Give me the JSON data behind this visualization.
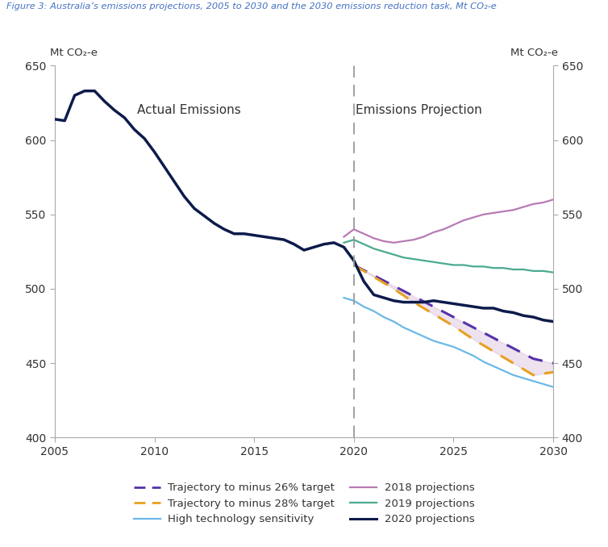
{
  "title": "Figure 3: Australia’s emissions projections, 2005 to 2030 and the 2030 emissions reduction task, Mt CO₂-e",
  "ylabel_left": "Mt CO₂-e",
  "ylabel_right": "Mt CO₂-e",
  "ylim": [
    400,
    650
  ],
  "xlim": [
    2005,
    2030
  ],
  "yticks": [
    400,
    450,
    500,
    550,
    600,
    650
  ],
  "xticks": [
    2005,
    2010,
    2015,
    2020,
    2025,
    2030
  ],
  "annotation_left": "Actual Emissions",
  "annotation_right": "Emissions Projection",
  "dashed_vline_x": 2020,
  "background_color": "#ffffff",
  "title_color": "#4472C4",
  "series_2020_proj": {
    "x": [
      2005,
      2005.5,
      2006,
      2006.5,
      2007,
      2007.5,
      2008,
      2008.5,
      2009,
      2009.5,
      2010,
      2010.5,
      2011,
      2011.5,
      2012,
      2012.5,
      2013,
      2013.5,
      2014,
      2014.5,
      2015,
      2015.5,
      2016,
      2016.5,
      2017,
      2017.5,
      2018,
      2018.5,
      2019,
      2019.5,
      2020,
      2020.5,
      2021,
      2021.5,
      2022,
      2022.5,
      2023,
      2023.5,
      2024,
      2024.5,
      2025,
      2025.5,
      2026,
      2026.5,
      2027,
      2027.5,
      2028,
      2028.5,
      2029,
      2029.5,
      2030
    ],
    "y": [
      614,
      613,
      630,
      633,
      633,
      626,
      620,
      615,
      607,
      601,
      592,
      582,
      572,
      562,
      554,
      549,
      544,
      540,
      537,
      537,
      536,
      535,
      534,
      533,
      530,
      526,
      528,
      530,
      531,
      528,
      519,
      505,
      496,
      494,
      492,
      491,
      491,
      491,
      492,
      491,
      490,
      489,
      488,
      487,
      487,
      485,
      484,
      482,
      481,
      479,
      478
    ],
    "color": "#0d1b4b",
    "linewidth": 2.5,
    "label": "2020 projections"
  },
  "series_2018_proj": {
    "x": [
      2019.5,
      2020,
      2020.5,
      2021,
      2021.5,
      2022,
      2022.5,
      2023,
      2023.5,
      2024,
      2024.5,
      2025,
      2025.5,
      2026,
      2026.5,
      2027,
      2027.5,
      2028,
      2028.5,
      2029,
      2029.5,
      2030
    ],
    "y": [
      535,
      540,
      537,
      534,
      532,
      531,
      532,
      533,
      535,
      538,
      540,
      543,
      546,
      548,
      550,
      551,
      552,
      553,
      555,
      557,
      558,
      560
    ],
    "color": "#b87ab5",
    "linewidth": 1.6,
    "label": "2018 projections"
  },
  "series_2019_proj": {
    "x": [
      2019.5,
      2020,
      2020.5,
      2021,
      2021.5,
      2022,
      2022.5,
      2023,
      2023.5,
      2024,
      2024.5,
      2025,
      2025.5,
      2026,
      2026.5,
      2027,
      2027.5,
      2028,
      2028.5,
      2029,
      2029.5,
      2030
    ],
    "y": [
      531,
      533,
      530,
      527,
      525,
      523,
      521,
      520,
      519,
      518,
      517,
      516,
      516,
      515,
      515,
      514,
      514,
      513,
      513,
      512,
      512,
      511
    ],
    "color": "#4aaa90",
    "linewidth": 1.6,
    "label": "2019 projections"
  },
  "series_high_tech": {
    "x": [
      2019.5,
      2020,
      2020.5,
      2021,
      2021.5,
      2022,
      2022.5,
      2023,
      2023.5,
      2024,
      2024.5,
      2025,
      2025.5,
      2026,
      2026.5,
      2027,
      2027.5,
      2028,
      2028.5,
      2029,
      2029.5,
      2030
    ],
    "y": [
      494,
      492,
      488,
      485,
      481,
      478,
      474,
      471,
      468,
      465,
      463,
      461,
      458,
      455,
      451,
      448,
      445,
      442,
      440,
      438,
      436,
      434
    ],
    "color": "#6bb8e8",
    "linewidth": 1.6,
    "label": "High technology sensitivity"
  },
  "series_traj26": {
    "x": [
      2020,
      2021,
      2022,
      2023,
      2024,
      2025,
      2026,
      2027,
      2028,
      2029,
      2030
    ],
    "y": [
      516,
      509,
      502,
      495,
      488,
      481,
      474,
      467,
      460,
      453,
      450
    ],
    "color": "#5533aa",
    "linewidth": 2.2,
    "label": "Trajectory to minus 26% target"
  },
  "series_traj28": {
    "x": [
      2020,
      2021,
      2022,
      2023,
      2024,
      2025,
      2026,
      2027,
      2028,
      2029,
      2030
    ],
    "y": [
      516,
      508,
      500,
      491,
      483,
      475,
      466,
      458,
      450,
      442,
      444
    ],
    "color": "#e8a020",
    "linewidth": 2.2,
    "label": "Trajectory to minus 28% target"
  },
  "fill_between_color": "#c8a0c8",
  "fill_between_alpha": 0.3
}
